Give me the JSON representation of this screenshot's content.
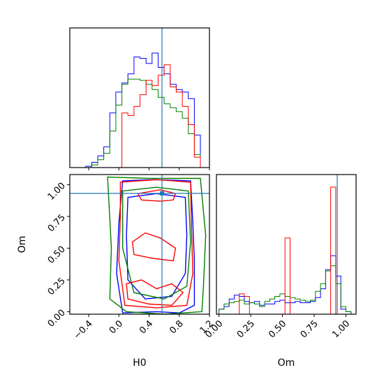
{
  "chart_data": {
    "type": "corner",
    "parameters": [
      "H0",
      "Om"
    ],
    "truths": {
      "H0": 0.55,
      "Om": 0.91
    },
    "series_colors": [
      "#0000ff",
      "#008000",
      "#ff0000"
    ],
    "truth_color": "#1f77b4",
    "axes": {
      "H0": {
        "label": "H0",
        "range": [
          -0.65,
          1.2
        ],
        "ticks": [
          -0.4,
          0.0,
          0.4,
          0.8,
          1.2
        ],
        "tick_labels": [
          "−0.4",
          "0.0",
          "0.4",
          "0.8",
          "1.2"
        ]
      },
      "Om": {
        "label": "Om",
        "range": [
          -0.02,
          1.08
        ],
        "ticks": [
          0.0,
          0.25,
          0.5,
          0.75,
          1.0
        ],
        "tick_labels": [
          "0.00",
          "0.25",
          "0.50",
          "0.75",
          "1.00"
        ]
      }
    },
    "h0_hist": {
      "edges": [
        -0.6,
        -0.52,
        -0.44,
        -0.36,
        -0.28,
        -0.2,
        -0.12,
        -0.04,
        0.04,
        0.12,
        0.2,
        0.28,
        0.36,
        0.44,
        0.52,
        0.6,
        0.68,
        0.76,
        0.84,
        0.92,
        1.0,
        1.08,
        1.16
      ],
      "series": [
        {
          "color": "#0000ff",
          "values": [
            0,
            0,
            1,
            4,
            9,
            16,
            42,
            58,
            65,
            72,
            85,
            84,
            80,
            88,
            77,
            72,
            64,
            60,
            58,
            53,
            25,
            0
          ]
        },
        {
          "color": "#008000",
          "values": [
            0,
            0,
            0,
            2,
            6,
            11,
            28,
            48,
            64,
            68,
            68,
            67,
            64,
            60,
            54,
            49,
            46,
            43,
            38,
            26,
            10,
            0
          ]
        },
        {
          "color": "#ff0000",
          "values": [
            0,
            0,
            0,
            0,
            0,
            0,
            0,
            0,
            42,
            40,
            47,
            56,
            67,
            63,
            71,
            79,
            62,
            58,
            47,
            33,
            8,
            0
          ]
        }
      ]
    },
    "om_hist": {
      "edges": [
        0.0,
        0.04,
        0.08,
        0.12,
        0.16,
        0.2,
        0.24,
        0.28,
        0.32,
        0.36,
        0.4,
        0.44,
        0.48,
        0.52,
        0.56,
        0.6,
        0.64,
        0.68,
        0.72,
        0.76,
        0.8,
        0.84,
        0.88,
        0.92,
        0.96,
        1.0,
        1.04
      ],
      "series": [
        {
          "color": "#0000ff",
          "values": [
            4,
            6,
            12,
            15,
            14,
            10,
            9,
            10,
            7,
            8,
            8,
            10,
            11,
            9,
            9,
            10,
            9,
            9,
            10,
            13,
            20,
            35,
            46,
            30,
            4,
            2
          ]
        },
        {
          "color": "#008000",
          "values": [
            4,
            8,
            9,
            10,
            11,
            8,
            9,
            8,
            6,
            10,
            12,
            14,
            16,
            14,
            13,
            12,
            11,
            10,
            11,
            18,
            24,
            34,
            38,
            24,
            6,
            2
          ]
        },
        {
          "color": "#ff0000",
          "values": [
            0,
            0,
            0,
            0,
            16,
            14,
            0,
            0,
            0,
            0,
            0,
            0,
            0,
            60,
            0,
            0,
            0,
            0,
            0,
            0,
            0,
            0,
            100,
            0,
            0,
            0
          ]
        }
      ]
    },
    "contours": [
      {
        "color": "#0000ff",
        "levels": [
          [
            [
              0.05,
              1.03
            ],
            [
              0.45,
              1.04
            ],
            [
              0.95,
              1.03
            ],
            [
              0.98,
              0.7
            ],
            [
              1.0,
              0.4
            ],
            [
              1.0,
              0.05
            ],
            [
              0.8,
              -0.01
            ],
            [
              0.5,
              0.0
            ],
            [
              0.05,
              -0.01
            ],
            [
              -0.03,
              0.3
            ],
            [
              0.0,
              0.7
            ]
          ],
          [
            [
              0.12,
              0.9
            ],
            [
              0.5,
              0.93
            ],
            [
              0.88,
              0.9
            ],
            [
              0.9,
              0.6
            ],
            [
              0.88,
              0.3
            ],
            [
              0.7,
              0.12
            ],
            [
              0.35,
              0.1
            ],
            [
              0.12,
              0.25
            ],
            [
              0.1,
              0.6
            ]
          ]
        ]
      },
      {
        "color": "#008000",
        "levels": [
          [
            [
              -0.15,
              1.06
            ],
            [
              0.4,
              1.05
            ],
            [
              1.08,
              1.05
            ],
            [
              1.15,
              0.6
            ],
            [
              1.12,
              0.2
            ],
            [
              1.1,
              0.0
            ],
            [
              0.6,
              -0.02
            ],
            [
              0.1,
              0.0
            ],
            [
              -0.12,
              0.1
            ],
            [
              -0.1,
              0.5
            ]
          ],
          [
            [
              0.05,
              0.95
            ],
            [
              0.5,
              0.98
            ],
            [
              0.92,
              0.95
            ],
            [
              0.95,
              0.55
            ],
            [
              0.9,
              0.2
            ],
            [
              0.6,
              0.1
            ],
            [
              0.2,
              0.15
            ],
            [
              0.05,
              0.5
            ]
          ]
        ]
      },
      {
        "color": "#ff0000",
        "levels": [
          [
            [
              0.02,
              1.02
            ],
            [
              0.5,
              1.04
            ],
            [
              0.95,
              1.02
            ],
            [
              0.96,
              0.7
            ],
            [
              0.98,
              0.3
            ],
            [
              0.9,
              0.05
            ],
            [
              0.5,
              0.03
            ],
            [
              0.08,
              0.05
            ],
            [
              0.0,
              0.4
            ],
            [
              0.02,
              0.75
            ]
          ],
          [
            [
              0.25,
              0.93
            ],
            [
              0.55,
              0.96
            ],
            [
              0.75,
              0.93
            ],
            [
              0.72,
              0.88
            ],
            [
              0.55,
              0.87
            ],
            [
              0.3,
              0.88
            ]
          ],
          [
            [
              0.18,
              0.55
            ],
            [
              0.35,
              0.62
            ],
            [
              0.55,
              0.58
            ],
            [
              0.75,
              0.5
            ],
            [
              0.72,
              0.4
            ],
            [
              0.45,
              0.42
            ],
            [
              0.2,
              0.45
            ]
          ],
          [
            [
              0.1,
              0.22
            ],
            [
              0.3,
              0.25
            ],
            [
              0.5,
              0.18
            ],
            [
              0.7,
              0.22
            ],
            [
              0.85,
              0.15
            ],
            [
              0.7,
              0.05
            ],
            [
              0.4,
              0.06
            ],
            [
              0.12,
              0.1
            ]
          ]
        ]
      }
    ]
  }
}
